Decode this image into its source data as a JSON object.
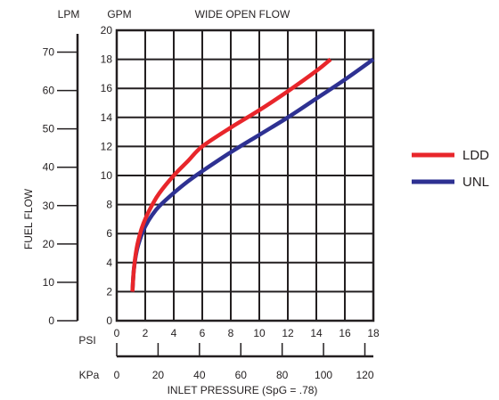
{
  "chart_data": {
    "type": "line",
    "title": "WIDE OPEN FLOW",
    "y_axis_label": "FUEL FLOW",
    "x_axis_label": "INLET PRESSURE (SpG = .78)",
    "gpm_axis": {
      "unit": "GPM",
      "range": [
        0,
        20
      ],
      "ticks": [
        0,
        2,
        4,
        6,
        8,
        10,
        12,
        14,
        16,
        18,
        20
      ]
    },
    "lpm_axis": {
      "unit": "LPM",
      "range": [
        0,
        75.7
      ],
      "ticks": [
        0,
        10,
        20,
        30,
        40,
        50,
        60,
        70
      ]
    },
    "psi_axis": {
      "unit": "PSI",
      "range": [
        0,
        18
      ],
      "ticks": [
        0,
        2,
        4,
        6,
        8,
        10,
        12,
        14,
        16,
        18
      ]
    },
    "kpa_axis": {
      "unit": "KPa",
      "range": [
        0,
        124.1
      ],
      "ticks": [
        0,
        20,
        40,
        60,
        80,
        100,
        120
      ]
    },
    "grid": true,
    "legend_position": "right",
    "series": [
      {
        "name": "LDD",
        "color": "#e8262b",
        "x": [
          1.1,
          1.2,
          1.4,
          1.7,
          2.0,
          2.5,
          3.0,
          4.0,
          5.0,
          6.0,
          8.0,
          10.0,
          12.0,
          14.0,
          15.0
        ],
        "y": [
          2.0,
          3.5,
          5.0,
          6.2,
          7.0,
          8.0,
          8.8,
          10.0,
          11.0,
          12.0,
          13.3,
          14.5,
          15.8,
          17.2,
          18.0
        ]
      },
      {
        "name": "UNL",
        "color": "#2e3192",
        "x": [
          1.1,
          1.2,
          1.4,
          1.7,
          2.0,
          2.5,
          3.0,
          4.0,
          5.0,
          6.0,
          8.0,
          10.0,
          12.0,
          14.0,
          16.0,
          18.0
        ],
        "y": [
          2.0,
          3.5,
          4.8,
          5.8,
          6.5,
          7.3,
          7.9,
          8.8,
          9.6,
          10.3,
          11.6,
          12.8,
          14.0,
          15.3,
          16.6,
          18.0
        ]
      }
    ]
  }
}
